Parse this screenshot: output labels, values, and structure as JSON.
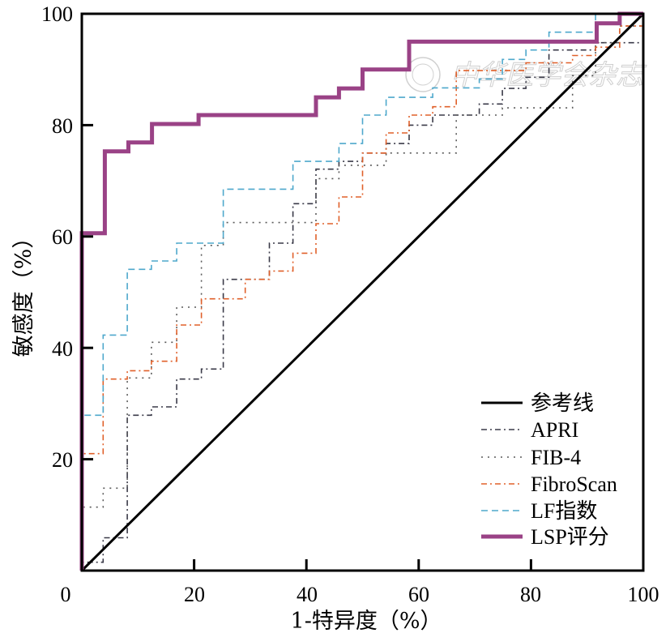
{
  "chart_data": {
    "type": "line",
    "title": "",
    "xlabel": "1-特异度（%）",
    "ylabel": "敏感度（%）",
    "xlim": [
      0,
      100
    ],
    "ylim": [
      0,
      100
    ],
    "x_ticks": [
      0,
      20,
      40,
      60,
      80,
      100
    ],
    "y_ticks": [
      20,
      40,
      60,
      80,
      100
    ],
    "legend_position": "bottom-right",
    "watermark": "中华医学会杂志",
    "series": [
      {
        "name": "参考线",
        "color": "#000000",
        "style": "solid",
        "points": [
          [
            0,
            0
          ],
          [
            100,
            100
          ]
        ]
      },
      {
        "name": "APRI",
        "color": "#3a3a48",
        "style": "dashdot",
        "points": [
          [
            0,
            0
          ],
          [
            0,
            1.5
          ],
          [
            3.8,
            1.5
          ],
          [
            3.8,
            5.9
          ],
          [
            8.1,
            5.9
          ],
          [
            8.1,
            27.9
          ],
          [
            12.4,
            27.9
          ],
          [
            12.4,
            29.4
          ],
          [
            16.9,
            29.4
          ],
          [
            16.9,
            34.4
          ],
          [
            21.3,
            34.4
          ],
          [
            21.3,
            36.2
          ],
          [
            25.2,
            36.2
          ],
          [
            25.2,
            52.3
          ],
          [
            33.4,
            52.3
          ],
          [
            33.4,
            58.8
          ],
          [
            37.6,
            58.8
          ],
          [
            37.6,
            65.9
          ],
          [
            41.7,
            65.9
          ],
          [
            41.7,
            72.1
          ],
          [
            45.8,
            72.1
          ],
          [
            45.8,
            73.5
          ],
          [
            50.0,
            73.5
          ],
          [
            50.0,
            75.0
          ],
          [
            54.2,
            75.0
          ],
          [
            54.2,
            76.7
          ],
          [
            58.3,
            76.7
          ],
          [
            58.3,
            80.0
          ],
          [
            62.5,
            80.0
          ],
          [
            62.5,
            81.8
          ],
          [
            70.8,
            81.8
          ],
          [
            70.8,
            83.8
          ],
          [
            74.9,
            83.8
          ],
          [
            74.9,
            86.6
          ],
          [
            79.1,
            86.6
          ],
          [
            79.1,
            88.6
          ],
          [
            83.2,
            88.6
          ],
          [
            83.2,
            93.5
          ],
          [
            91.5,
            93.5
          ],
          [
            91.5,
            94.8
          ],
          [
            100,
            94.8
          ],
          [
            100,
            100
          ]
        ]
      },
      {
        "name": "FIB-4",
        "color": "#5a5a5a",
        "style": "dotted",
        "points": [
          [
            0,
            0
          ],
          [
            0,
            11.4
          ],
          [
            3.8,
            11.4
          ],
          [
            3.8,
            14.8
          ],
          [
            8.1,
            14.8
          ],
          [
            8.1,
            34.6
          ],
          [
            12.4,
            34.6
          ],
          [
            12.4,
            41.0
          ],
          [
            16.9,
            41.0
          ],
          [
            16.9,
            47.3
          ],
          [
            21.3,
            47.3
          ],
          [
            21.3,
            58.4
          ],
          [
            25.2,
            58.4
          ],
          [
            25.2,
            62.5
          ],
          [
            37.6,
            62.5
          ],
          [
            37.6,
            62.5
          ],
          [
            41.7,
            62.5
          ],
          [
            41.7,
            70.4
          ],
          [
            45.8,
            70.4
          ],
          [
            45.8,
            72.8
          ],
          [
            54.2,
            72.8
          ],
          [
            54.2,
            75.0
          ],
          [
            62.5,
            75.0
          ],
          [
            62.5,
            75.0
          ],
          [
            66.7,
            75.0
          ],
          [
            66.7,
            81.8
          ],
          [
            74.9,
            81.8
          ],
          [
            74.9,
            83.1
          ],
          [
            87.4,
            83.1
          ],
          [
            87.4,
            88.9
          ],
          [
            91.5,
            88.9
          ],
          [
            91.5,
            94.8
          ],
          [
            95.8,
            94.8
          ],
          [
            95.8,
            97.8
          ],
          [
            100,
            97.8
          ],
          [
            100,
            100
          ]
        ]
      },
      {
        "name": "FibroScan",
        "color": "#e0602a",
        "style": "dashdot",
        "points": [
          [
            0,
            0
          ],
          [
            0,
            21.0
          ],
          [
            3.8,
            21.0
          ],
          [
            3.8,
            34.4
          ],
          [
            8.1,
            34.4
          ],
          [
            8.1,
            35.9
          ],
          [
            12.4,
            35.9
          ],
          [
            12.4,
            37.6
          ],
          [
            16.9,
            37.6
          ],
          [
            16.9,
            44.1
          ],
          [
            21.3,
            44.1
          ],
          [
            21.3,
            48.8
          ],
          [
            25.2,
            48.8
          ],
          [
            25.2,
            48.8
          ],
          [
            29.1,
            48.8
          ],
          [
            29.1,
            52.3
          ],
          [
            33.4,
            52.3
          ],
          [
            33.4,
            53.8
          ],
          [
            37.6,
            53.8
          ],
          [
            37.6,
            57.0
          ],
          [
            41.7,
            57.0
          ],
          [
            41.7,
            62.3
          ],
          [
            45.8,
            62.3
          ],
          [
            45.8,
            67.1
          ],
          [
            50.0,
            67.1
          ],
          [
            50.0,
            75.0
          ],
          [
            54.2,
            75.0
          ],
          [
            54.2,
            78.6
          ],
          [
            58.3,
            78.6
          ],
          [
            58.3,
            81.8
          ],
          [
            62.5,
            81.8
          ],
          [
            62.5,
            83.3
          ],
          [
            66.7,
            83.3
          ],
          [
            66.7,
            89.8
          ],
          [
            79.1,
            89.8
          ],
          [
            79.1,
            91.2
          ],
          [
            87.4,
            91.2
          ],
          [
            87.4,
            92.5
          ],
          [
            91.5,
            92.5
          ],
          [
            91.5,
            94.0
          ],
          [
            95.8,
            94.0
          ],
          [
            95.8,
            97.8
          ],
          [
            100,
            97.8
          ],
          [
            100,
            100
          ]
        ]
      },
      {
        "name": "LF指数",
        "color": "#4ea8cc",
        "style": "dashed",
        "points": [
          [
            0,
            0
          ],
          [
            0,
            27.9
          ],
          [
            3.8,
            27.9
          ],
          [
            3.8,
            42.3
          ],
          [
            8.1,
            42.3
          ],
          [
            8.1,
            54.1
          ],
          [
            12.4,
            54.1
          ],
          [
            12.4,
            55.6
          ],
          [
            16.9,
            55.6
          ],
          [
            16.9,
            58.8
          ],
          [
            21.3,
            58.8
          ],
          [
            21.3,
            58.8
          ],
          [
            25.2,
            58.8
          ],
          [
            25.2,
            68.5
          ],
          [
            37.6,
            68.5
          ],
          [
            37.6,
            73.5
          ],
          [
            41.7,
            73.5
          ],
          [
            41.7,
            73.5
          ],
          [
            45.8,
            73.5
          ],
          [
            45.8,
            76.7
          ],
          [
            50.0,
            76.7
          ],
          [
            50.0,
            81.8
          ],
          [
            54.2,
            81.8
          ],
          [
            54.2,
            85.0
          ],
          [
            58.3,
            85.0
          ],
          [
            58.3,
            85.0
          ],
          [
            62.5,
            85.0
          ],
          [
            62.5,
            86.7
          ],
          [
            70.8,
            86.7
          ],
          [
            70.8,
            88.3
          ],
          [
            74.9,
            88.3
          ],
          [
            74.9,
            91.8
          ],
          [
            79.1,
            91.8
          ],
          [
            79.1,
            93.5
          ],
          [
            83.2,
            93.5
          ],
          [
            83.2,
            96.7
          ],
          [
            91.5,
            96.7
          ],
          [
            91.5,
            100
          ],
          [
            100,
            100
          ]
        ]
      },
      {
        "name": "LSP评分",
        "color": "#9a4286",
        "style": "solid-thick",
        "points": [
          [
            0,
            0
          ],
          [
            0,
            60.6
          ],
          [
            4.1,
            60.6
          ],
          [
            4.1,
            75.3
          ],
          [
            8.3,
            75.3
          ],
          [
            8.3,
            76.9
          ],
          [
            12.5,
            76.9
          ],
          [
            12.5,
            80.2
          ],
          [
            20.8,
            80.2
          ],
          [
            20.8,
            81.8
          ],
          [
            41.7,
            81.8
          ],
          [
            41.7,
            85.0
          ],
          [
            45.8,
            85.0
          ],
          [
            45.8,
            86.6
          ],
          [
            50.0,
            86.6
          ],
          [
            50.0,
            90.0
          ],
          [
            58.3,
            90.0
          ],
          [
            58.3,
            95.0
          ],
          [
            91.7,
            95.0
          ],
          [
            91.7,
            98.3
          ],
          [
            95.8,
            98.3
          ],
          [
            95.8,
            100
          ],
          [
            100,
            100
          ]
        ]
      }
    ]
  }
}
